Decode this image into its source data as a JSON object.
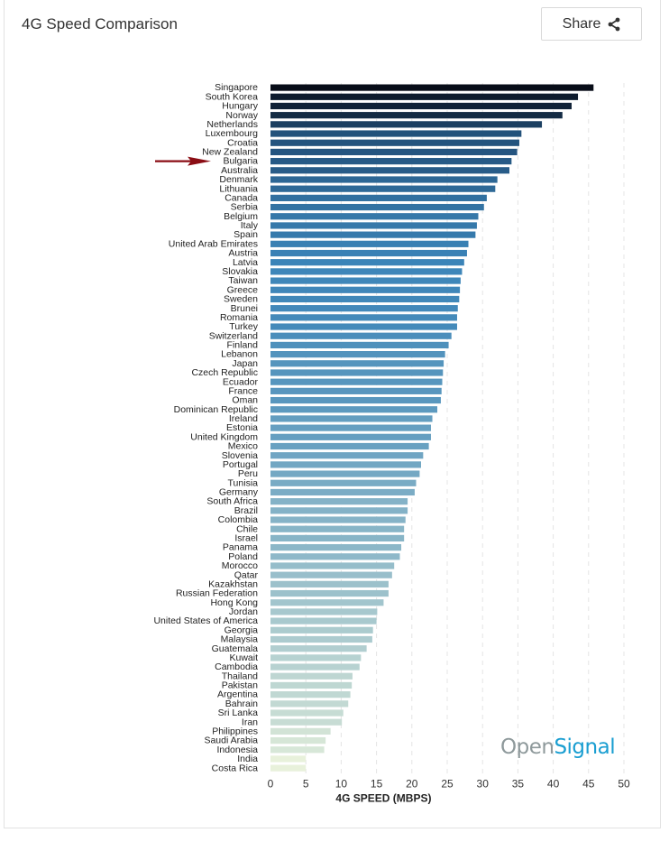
{
  "header": {
    "title": "4G Speed Comparison",
    "share_label": "Share",
    "share_icon": "share-icon"
  },
  "annotation": {
    "arrow_target": "Bulgaria",
    "arrow_color": "#8b0d14"
  },
  "logo": {
    "part1": "Open",
    "part2": "Signal",
    "color1": "#8e999b",
    "color2": "#1a9ed1"
  },
  "colors": {
    "bar_high": "#080d18",
    "bar_mid_high": "#1f4a72",
    "bar_mid": "#3b84b8",
    "bar_mid_low": "#9fc3cc",
    "bar_low": "#e8f1db"
  },
  "chart_data": {
    "type": "bar",
    "orientation": "horizontal",
    "title": "4G Speed Comparison",
    "xlabel": "4G SPEED (MBPS)",
    "ylabel": "",
    "xlim": [
      0,
      50
    ],
    "xticks": [
      0,
      5,
      10,
      15,
      20,
      25,
      30,
      35,
      40,
      45,
      50
    ],
    "grid": "vertical dashed",
    "categories": [
      "Singapore",
      "South Korea",
      "Hungary",
      "Norway",
      "Netherlands",
      "Luxembourg",
      "Croatia",
      "New Zealand",
      "Bulgaria",
      "Australia",
      "Denmark",
      "Lithuania",
      "Canada",
      "Serbia",
      "Belgium",
      "Italy",
      "Spain",
      "United Arab Emirates",
      "Austria",
      "Latvia",
      "Slovakia",
      "Taiwan",
      "Greece",
      "Sweden",
      "Brunei",
      "Romania",
      "Turkey",
      "Switzerland",
      "Finland",
      "Lebanon",
      "Japan",
      "Czech Republic",
      "Ecuador",
      "France",
      "Oman",
      "Dominican Republic",
      "Ireland",
      "Estonia",
      "United Kingdom",
      "Mexico",
      "Slovenia",
      "Portugal",
      "Peru",
      "Tunisia",
      "Germany",
      "South Africa",
      "Brazil",
      "Colombia",
      "Chile",
      "Israel",
      "Panama",
      "Poland",
      "Morocco",
      "Qatar",
      "Kazakhstan",
      "Russian Federation",
      "Hong Kong",
      "Jordan",
      "United States of America",
      "Georgia",
      "Malaysia",
      "Guatemala",
      "Kuwait",
      "Cambodia",
      "Thailand",
      "Pakistan",
      "Argentina",
      "Bahrain",
      "Sri Lanka",
      "Iran",
      "Philippines",
      "Saudi Arabia",
      "Indonesia",
      "India",
      "Costa Rica"
    ],
    "values": [
      45.7,
      43.5,
      42.6,
      41.3,
      38.4,
      35.5,
      35.2,
      34.9,
      34.1,
      33.8,
      32.1,
      31.8,
      30.6,
      30.2,
      29.4,
      29.2,
      29.0,
      28.0,
      27.8,
      27.4,
      27.1,
      26.9,
      26.8,
      26.7,
      26.5,
      26.4,
      26.4,
      25.6,
      25.2,
      24.7,
      24.5,
      24.4,
      24.3,
      24.2,
      24.1,
      23.6,
      22.9,
      22.7,
      22.7,
      22.4,
      21.6,
      21.3,
      21.1,
      20.6,
      20.4,
      19.4,
      19.4,
      19.1,
      18.9,
      18.9,
      18.5,
      18.3,
      17.5,
      17.2,
      16.7,
      16.7,
      16.0,
      15.1,
      15.0,
      14.5,
      14.4,
      13.6,
      12.8,
      12.6,
      11.6,
      11.5,
      11.3,
      11.0,
      10.3,
      10.1,
      8.5,
      7.8,
      7.6,
      5.0,
      5.0
    ]
  }
}
